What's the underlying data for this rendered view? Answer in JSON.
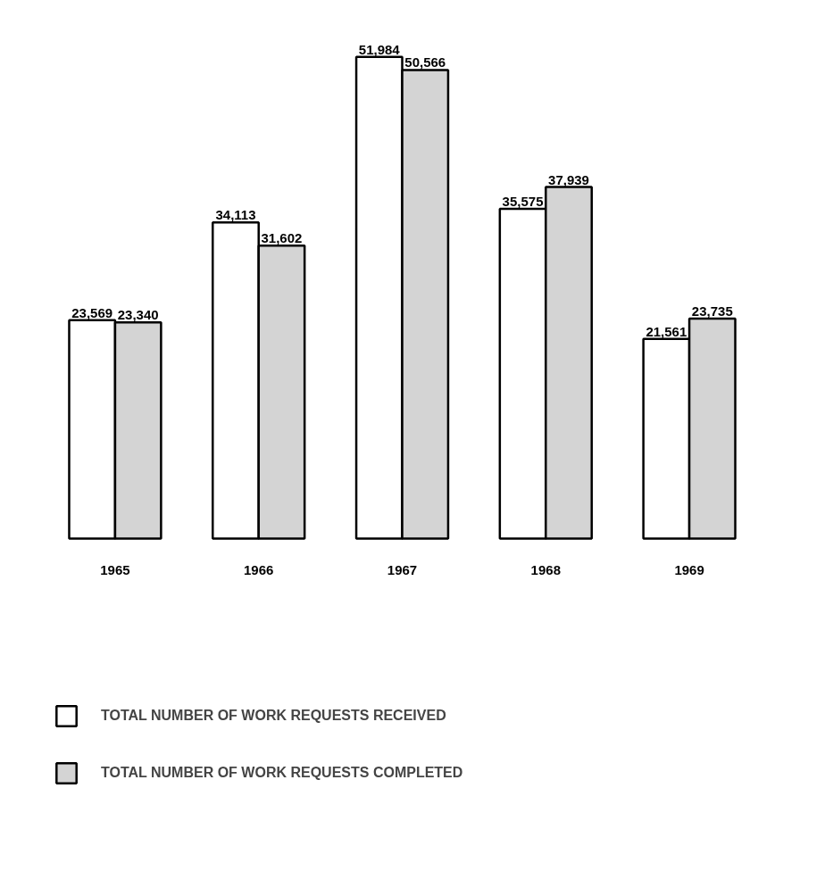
{
  "chart_data": {
    "type": "bar",
    "categories": [
      "1965",
      "1966",
      "1967",
      "1968",
      "1969"
    ],
    "series": [
      {
        "name": "TOTAL NUMBER OF WORK REQUESTS RECEIVED",
        "color": "#ffffff",
        "values": [
          23569,
          34113,
          51984,
          35575,
          21561
        ],
        "value_labels": [
          "23,569",
          "34,113",
          "51,984",
          "35,575",
          "21,561"
        ]
      },
      {
        "name": "TOTAL NUMBER OF WORK REQUESTS COMPLETED",
        "color": "#d4d4d4",
        "values": [
          23340,
          31602,
          50566,
          37939,
          23735
        ],
        "value_labels": [
          "23,340",
          "31,602",
          "50,566",
          "37,939",
          "23,735"
        ]
      }
    ],
    "legend": "bottom"
  }
}
